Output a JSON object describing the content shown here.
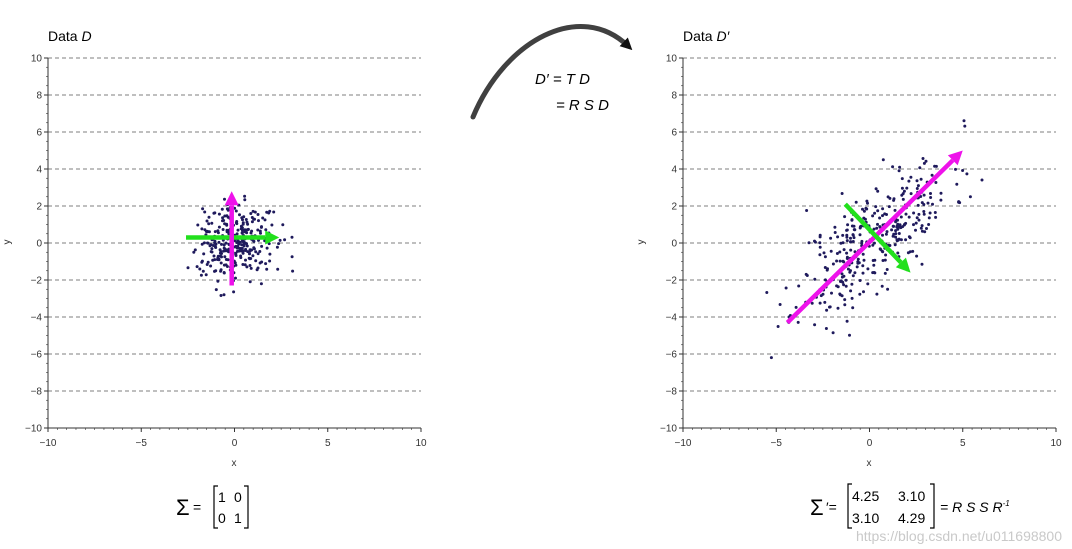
{
  "chart_data": [
    {
      "type": "scatter",
      "title": "Data D",
      "title_prefix": "Data ",
      "title_symbol": "D",
      "xlabel": "x",
      "ylabel": "y",
      "xlim": [
        -10,
        10
      ],
      "ylim": [
        -10,
        10
      ],
      "xticks": [
        -10,
        -5,
        0,
        5,
        10
      ],
      "yticks": [
        10,
        8,
        6,
        4,
        2,
        0,
        -2,
        -4,
        -6,
        -8,
        -10
      ],
      "xtick_labels": [
        "−10",
        "−5",
        "0",
        "5",
        "10"
      ],
      "ytick_labels": [
        "10",
        "8",
        "6",
        "4",
        "2",
        "0",
        "−2",
        "−4",
        "−6",
        "−8",
        "−10"
      ],
      "grid": "horizontal dashed",
      "point_color": "#1f1a5c",
      "points": {
        "n": 320,
        "mean": [
          0,
          0
        ],
        "covariance": [
          [
            1,
            0
          ],
          [
            0,
            1
          ]
        ],
        "seed": 7
      },
      "vectors": [
        {
          "from": [
            -2.6,
            0.3
          ],
          "to": [
            2.4,
            0.3
          ],
          "color": "#22e01d"
        },
        {
          "from": [
            -0.15,
            -2.3
          ],
          "to": [
            -0.15,
            2.8
          ],
          "color": "#ee12ea"
        }
      ],
      "covariance_label": {
        "symbol": "Σ",
        "suffix": "=",
        "matrix": [
          [
            "1",
            "0"
          ],
          [
            "0",
            "1"
          ]
        ]
      }
    },
    {
      "type": "scatter",
      "title": "Data D′",
      "title_prefix": "Data ",
      "title_symbol": "D′",
      "xlabel": "x",
      "ylabel": "y",
      "xlim": [
        -10,
        10
      ],
      "ylim": [
        -10,
        10
      ],
      "xticks": [
        -10,
        -5,
        0,
        5,
        10
      ],
      "yticks": [
        10,
        8,
        6,
        4,
        2,
        0,
        -2,
        -4,
        -6,
        -8,
        -10
      ],
      "xtick_labels": [
        "−10",
        "−5",
        "0",
        "5",
        "10"
      ],
      "ytick_labels": [
        "10",
        "8",
        "6",
        "4",
        "2",
        "0",
        "−2",
        "−4",
        "−6",
        "−8",
        "−10"
      ],
      "grid": "horizontal dashed",
      "point_color": "#1f1a5c",
      "points": {
        "n": 360,
        "mean": [
          0.3,
          0.3
        ],
        "covariance": [
          [
            4.25,
            3.1
          ],
          [
            3.1,
            4.29
          ]
        ],
        "seed": 11
      },
      "vectors": [
        {
          "from": [
            -4.4,
            -4.3
          ],
          "to": [
            5.0,
            5.0
          ],
          "color": "#ee12ea"
        },
        {
          "from": [
            -1.3,
            2.1
          ],
          "to": [
            2.2,
            -1.6
          ],
          "color": "#22e01d"
        }
      ],
      "covariance_label": {
        "symbol": "Σ",
        "suffix": "′=",
        "matrix": [
          [
            "4.25",
            "3.10"
          ],
          [
            "3.10",
            "4.29"
          ]
        ],
        "rhs": "= R S S R",
        "rhs_sup": "-1"
      }
    }
  ],
  "transform": {
    "line1": "D′ = T D",
    "line2": "= R S D"
  },
  "watermark": "https://blog.csdn.net/u011698800"
}
